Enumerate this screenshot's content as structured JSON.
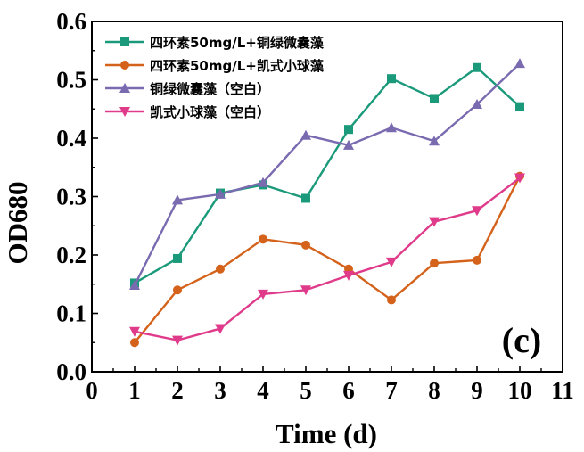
{
  "chart_data": {
    "type": "line",
    "xlabel": "Time (d)",
    "ylabel": "OD680",
    "xlim": [
      0,
      11
    ],
    "ylim": [
      0,
      0.6
    ],
    "xticks": [
      0,
      1,
      2,
      3,
      4,
      5,
      6,
      7,
      8,
      9,
      10,
      11
    ],
    "yticks": [
      "0.0",
      "0.1",
      "0.2",
      "0.3",
      "0.4",
      "0.5",
      "0.6"
    ],
    "grid": false,
    "legend_position": "top-left",
    "panel_label": "(c)",
    "x": [
      1,
      2,
      3,
      4,
      5,
      6,
      7,
      8,
      9,
      10
    ],
    "series": [
      {
        "name": "四环素50mg/L+铜绿微囊藻",
        "color": "#1a9a7a",
        "marker": "square",
        "values": [
          0.152,
          0.194,
          0.306,
          0.32,
          0.297,
          0.415,
          0.502,
          0.468,
          0.521,
          0.454
        ]
      },
      {
        "name": "四环素50mg/L+凯式小球藻",
        "color": "#d4621a",
        "marker": "circle",
        "values": [
          0.05,
          0.14,
          0.176,
          0.227,
          0.217,
          0.176,
          0.123,
          0.186,
          0.191,
          0.335
        ]
      },
      {
        "name": "铜绿微囊藻（空白）",
        "color": "#7a6ab0",
        "marker": "triangle-up",
        "values": [
          0.148,
          0.294,
          0.304,
          0.324,
          0.405,
          0.388,
          0.418,
          0.395,
          0.458,
          0.528
        ]
      },
      {
        "name": "凯式小球藻（空白）",
        "color": "#e03a8a",
        "marker": "triangle-down",
        "values": [
          0.069,
          0.054,
          0.074,
          0.133,
          0.14,
          0.165,
          0.188,
          0.257,
          0.276,
          0.332
        ]
      }
    ]
  }
}
